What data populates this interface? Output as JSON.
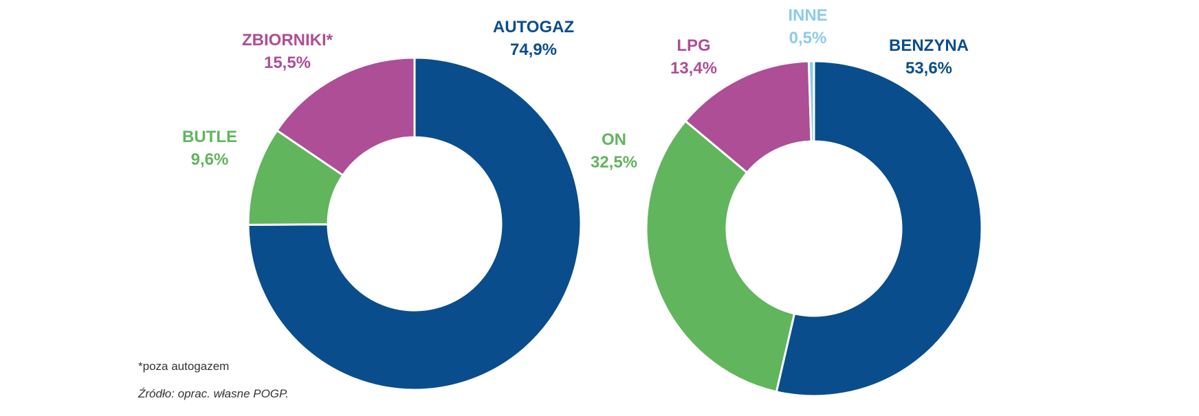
{
  "charts": [
    {
      "chart_data": {
        "type": "pie",
        "variant": "donut",
        "categories": [
          "AUTOGAZ",
          "BUTLE",
          "ZBIORNIKI*"
        ],
        "values": [
          74.9,
          9.6,
          15.5
        ],
        "value_labels": [
          "74,9%",
          "9,6%",
          "15,5%"
        ],
        "colors": [
          "#0a4d8c",
          "#61b55c",
          "#ad4e96"
        ],
        "title": "",
        "legend": "none"
      }
    },
    {
      "chart_data": {
        "type": "pie",
        "variant": "donut",
        "categories": [
          "BENZYNA",
          "ON",
          "LPG",
          "INNE"
        ],
        "values": [
          53.6,
          32.5,
          13.4,
          0.5
        ],
        "value_labels": [
          "53,6%",
          "32,5%",
          "13,4%",
          "0,5%"
        ],
        "colors": [
          "#0a4d8c",
          "#61b55c",
          "#ad4e96",
          "#8ccbec"
        ],
        "title": "",
        "legend": "none"
      }
    }
  ],
  "notes": {
    "footnote": "*poza autogazem",
    "source": "Źródło: oprac. własne POGP."
  }
}
